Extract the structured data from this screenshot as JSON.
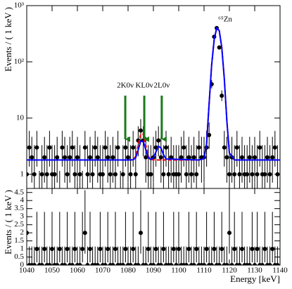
{
  "chart_data": [
    {
      "type": "scatter",
      "ylabel": "Events / ( 1 keV )",
      "log_y": true,
      "xlim": [
        1040,
        1140
      ],
      "xticks": [
        1040,
        1050,
        1060,
        1070,
        1080,
        1090,
        1100,
        1110,
        1120,
        1130,
        1140
      ],
      "ylim": [
        0.56,
        1000
      ],
      "yticks": [
        1,
        10,
        {
          "value": 100,
          "label": "10²"
        },
        {
          "value": 1000,
          "label": "10³"
        }
      ],
      "peak_label": "⁶⁵Zn",
      "annotations": [
        {
          "text": "2K0ν",
          "x": 1078.9,
          "color": "#1a7a1a"
        },
        {
          "text": "KL0ν",
          "x": 1086.4,
          "color": "#1a7a1a"
        },
        {
          "text": "2L0ν",
          "x": 1093.3,
          "color": "#1a7a1a"
        }
      ],
      "series": [
        {
          "type": "points",
          "color": "#000000",
          "x": [
            1040,
            1041,
            1042,
            1043,
            1044,
            1045,
            1046,
            1047,
            1048,
            1049,
            1050,
            1051,
            1052,
            1053,
            1054,
            1055,
            1056,
            1057,
            1058,
            1059,
            1060,
            1061,
            1062,
            1063,
            1064,
            1065,
            1066,
            1067,
            1068,
            1069,
            1070,
            1071,
            1072,
            1073,
            1074,
            1075,
            1076,
            1077,
            1078,
            1079,
            1080,
            1081,
            1082,
            1083,
            1084,
            1085,
            1086,
            1087,
            1088,
            1089,
            1090,
            1091,
            1092,
            1093,
            1094,
            1095,
            1096,
            1097,
            1098,
            1099,
            1100,
            1101,
            1102,
            1103,
            1104,
            1105,
            1106,
            1107,
            1108,
            1109,
            1110,
            1111,
            1112,
            1113,
            1114,
            1115,
            1116,
            1117,
            1118,
            1119,
            1120,
            1121,
            1122,
            1123,
            1124,
            1125,
            1126,
            1127,
            1128,
            1129,
            1130,
            1131,
            1132,
            1133,
            1134,
            1135,
            1136,
            1137,
            1138,
            1139
          ],
          "values": [
            1,
            3,
            2,
            1,
            3,
            0,
            1,
            2,
            1,
            3,
            1,
            1,
            2,
            0,
            3,
            2,
            1,
            2,
            3,
            1,
            2,
            1,
            0,
            3,
            1,
            2,
            1,
            3,
            2,
            1,
            1,
            3,
            2,
            1,
            2,
            1,
            3,
            0,
            1,
            3,
            2,
            1,
            3,
            1,
            4,
            6,
            4,
            2,
            1,
            1,
            2,
            3,
            4,
            2,
            1,
            3,
            1,
            2,
            1,
            1,
            1,
            2,
            3,
            1,
            2,
            1,
            2,
            1,
            3,
            2,
            2,
            3,
            5,
            40,
            280,
            400,
            180,
            25,
            3,
            2,
            1,
            2,
            1,
            3,
            1,
            2,
            1,
            1,
            2,
            1,
            2,
            1,
            3,
            1,
            1,
            2,
            1,
            2,
            3,
            1
          ],
          "yerr_low": [
            0.83,
            1.63,
            1.29,
            0.83,
            1.63,
            0,
            0.83,
            1.29,
            0.83,
            1.63,
            0.83,
            0.83,
            1.29,
            0,
            1.63,
            1.29,
            0.83,
            1.29,
            1.63,
            0.83,
            1.29,
            0.83,
            0,
            1.63,
            0.83,
            1.29,
            0.83,
            1.63,
            1.29,
            0.83,
            0.83,
            1.63,
            1.29,
            0.83,
            1.29,
            0.83,
            1.63,
            0,
            0.83,
            1.63,
            1.29,
            0.83,
            1.63,
            0.83,
            1.91,
            2.38,
            1.91,
            1.29,
            0.83,
            0.83,
            1.29,
            1.63,
            1.91,
            1.29,
            0.83,
            1.63,
            0.83,
            1.29,
            0.83,
            0.83,
            0.83,
            1.29,
            1.63,
            0.83,
            1.29,
            0.83,
            1.29,
            0.83,
            1.63,
            1.29,
            1.29,
            1.63,
            2.16,
            6.3,
            16.7,
            20,
            13.4,
            4.95,
            1.63,
            1.29,
            0.83,
            1.29,
            0.83,
            1.63,
            0.83,
            1.29,
            0.83,
            0.83,
            1.29,
            0.83,
            1.29,
            0.83,
            1.63,
            0.83,
            0.83,
            1.29,
            0.83,
            1.29,
            1.63,
            0.83
          ],
          "yerr_high": [
            2.3,
            2.92,
            2.64,
            2.3,
            2.92,
            1.15,
            2.3,
            2.64,
            2.3,
            2.92,
            2.3,
            2.3,
            2.64,
            1.15,
            2.92,
            2.64,
            2.3,
            2.64,
            2.92,
            2.3,
            2.64,
            2.3,
            1.15,
            2.92,
            2.3,
            2.64,
            2.3,
            2.92,
            2.64,
            2.3,
            2.3,
            2.92,
            2.64,
            2.3,
            2.64,
            2.3,
            2.92,
            1.15,
            2.3,
            2.92,
            2.64,
            2.3,
            2.92,
            2.3,
            3.16,
            3.58,
            3.16,
            2.64,
            2.3,
            2.3,
            2.64,
            2.92,
            3.16,
            2.64,
            2.3,
            2.92,
            2.3,
            2.64,
            2.3,
            2.3,
            2.3,
            2.64,
            2.92,
            2.3,
            2.64,
            2.3,
            2.64,
            2.3,
            2.92,
            2.64,
            2.64,
            2.92,
            3.38,
            7.4,
            17.7,
            21,
            14.4,
            6.1,
            2.92,
            2.64,
            2.3,
            2.64,
            2.3,
            2.92,
            2.3,
            2.64,
            2.3,
            2.3,
            2.64,
            2.3,
            2.64,
            2.3,
            2.92,
            2.3,
            2.3,
            2.64,
            2.3,
            2.64,
            2.92,
            2.3
          ]
        },
        {
          "type": "line",
          "color": "#ff0000",
          "dashed": true,
          "x": [
            1040,
            1080,
            1082,
            1083,
            1084,
            1085,
            1086,
            1087,
            1088,
            1089,
            1090,
            1091,
            1092,
            1093,
            1094,
            1095,
            1108,
            1110,
            1111,
            1112,
            1113,
            1114,
            1115,
            1116,
            1117,
            1118,
            1119,
            1120,
            1122,
            1140
          ],
          "values": [
            1.8,
            1.8,
            1.82,
            2.08,
            3.26,
            5.2,
            5.2,
            3.26,
            2.08,
            1.85,
            1.81,
            1.8,
            1.8,
            1.8,
            1.8,
            1.8,
            1.8,
            1.9,
            3.5,
            18,
            88,
            250,
            400,
            360,
            180,
            50,
            9,
            2.4,
            1.8,
            1.8
          ]
        },
        {
          "type": "line",
          "color": "#0000ff",
          "dashed": false,
          "x": [
            1040,
            1080,
            1082,
            1083,
            1084,
            1085,
            1086,
            1087,
            1088,
            1089,
            1090,
            1091,
            1092,
            1093,
            1094,
            1095,
            1108,
            1110,
            1111,
            1112,
            1113,
            1114,
            1115,
            1116,
            1117,
            1118,
            1119,
            1120,
            1122,
            1140
          ],
          "values": [
            1.8,
            1.8,
            1.81,
            1.97,
            2.71,
            3.87,
            3.87,
            2.71,
            1.97,
            1.83,
            1.96,
            2.5,
            3.15,
            2.94,
            2.23,
            1.87,
            1.8,
            1.9,
            3.5,
            18,
            88,
            250,
            400,
            360,
            180,
            50,
            9,
            2.4,
            1.8,
            1.8
          ]
        }
      ]
    },
    {
      "type": "scatter",
      "ylabel": "Events / ( 1 keV )",
      "xlabel": "Energy [keV]",
      "log_y": false,
      "xlim": [
        1040,
        1140
      ],
      "xticks": [
        1040,
        1050,
        1060,
        1070,
        1080,
        1090,
        1100,
        1110,
        1120,
        1130,
        1140
      ],
      "ylim": [
        0,
        4.75
      ],
      "yticks": [
        0,
        0.5,
        1,
        1.5,
        2,
        2.5,
        3,
        3.5,
        4,
        4.5
      ],
      "series": [
        {
          "type": "points",
          "color": "#000000",
          "x": [
            1040,
            1041,
            1042,
            1043,
            1044,
            1045,
            1046,
            1047,
            1048,
            1049,
            1050,
            1051,
            1052,
            1053,
            1054,
            1055,
            1056,
            1057,
            1058,
            1059,
            1060,
            1061,
            1062,
            1063,
            1064,
            1065,
            1066,
            1067,
            1068,
            1069,
            1070,
            1071,
            1072,
            1073,
            1074,
            1075,
            1076,
            1077,
            1078,
            1079,
            1080,
            1081,
            1082,
            1083,
            1084,
            1085,
            1086,
            1087,
            1088,
            1089,
            1090,
            1091,
            1092,
            1093,
            1094,
            1095,
            1096,
            1097,
            1098,
            1099,
            1100,
            1101,
            1102,
            1103,
            1104,
            1105,
            1106,
            1107,
            1108,
            1109,
            1110,
            1111,
            1112,
            1113,
            1114,
            1115,
            1116,
            1117,
            1118,
            1119,
            1120,
            1121,
            1122,
            1123,
            1124,
            1125,
            1126,
            1127,
            1128,
            1129,
            1130,
            1131,
            1132,
            1133,
            1134,
            1135,
            1136,
            1137,
            1138,
            1139
          ],
          "values": [
            2,
            0,
            0,
            0,
            1,
            0,
            0,
            1,
            0,
            0,
            1,
            0,
            0,
            1,
            0,
            0,
            1,
            0,
            0,
            1,
            0,
            0,
            1,
            2,
            0,
            1,
            0,
            0,
            0,
            1,
            0,
            0,
            1,
            0,
            0,
            1,
            0,
            0,
            0,
            1,
            0,
            0,
            1,
            0,
            0,
            2,
            0,
            0,
            1,
            0,
            0,
            1,
            0,
            0,
            1,
            0,
            0,
            0,
            1,
            0,
            1,
            0,
            0,
            0,
            1,
            0,
            0,
            1,
            0,
            0,
            0,
            1,
            0,
            0,
            1,
            0,
            0,
            1,
            0,
            0,
            2,
            0,
            1,
            0,
            0,
            1,
            0,
            0,
            0,
            1,
            0,
            1,
            0,
            0,
            1,
            0,
            0,
            1,
            0,
            0
          ],
          "yerr_low": [
            1.29,
            0,
            0,
            0,
            0.83,
            0,
            0,
            0.83,
            0,
            0,
            0.83,
            0,
            0,
            0.83,
            0,
            0,
            0.83,
            0,
            0,
            0.83,
            0,
            0,
            0.83,
            1.29,
            0,
            0.83,
            0,
            0,
            0,
            0.83,
            0,
            0,
            0.83,
            0,
            0,
            0.83,
            0,
            0,
            0,
            0.83,
            0,
            0,
            0.83,
            0,
            0,
            1.29,
            0,
            0,
            0.83,
            0,
            0,
            0.83,
            0,
            0,
            0.83,
            0,
            0,
            0,
            0.83,
            0,
            0.83,
            0,
            0,
            0,
            0.83,
            0,
            0,
            0.83,
            0,
            0,
            0,
            0.83,
            0,
            0,
            0.83,
            0,
            0,
            0.83,
            0,
            0,
            1.29,
            0,
            0.83,
            0,
            0,
            0.83,
            0,
            0,
            0,
            0.83,
            0,
            0.83,
            0,
            0,
            0.83,
            0,
            0,
            0.83,
            0,
            0
          ],
          "yerr_high": [
            2.64,
            1.15,
            1.15,
            1.15,
            2.3,
            1.15,
            1.15,
            2.3,
            1.15,
            1.15,
            2.3,
            1.15,
            1.15,
            2.3,
            1.15,
            1.15,
            2.3,
            1.15,
            1.15,
            2.3,
            1.15,
            1.15,
            2.3,
            2.64,
            1.15,
            2.3,
            1.15,
            1.15,
            1.15,
            2.3,
            1.15,
            1.15,
            2.3,
            1.15,
            1.15,
            2.3,
            1.15,
            1.15,
            1.15,
            2.3,
            1.15,
            1.15,
            2.3,
            1.15,
            1.15,
            2.64,
            1.15,
            1.15,
            2.3,
            1.15,
            1.15,
            2.3,
            1.15,
            1.15,
            2.3,
            1.15,
            1.15,
            1.15,
            2.3,
            1.15,
            2.3,
            1.15,
            1.15,
            1.15,
            2.3,
            1.15,
            1.15,
            2.3,
            1.15,
            1.15,
            1.15,
            2.3,
            1.15,
            1.15,
            2.3,
            1.15,
            1.15,
            2.3,
            1.15,
            1.15,
            2.64,
            1.15,
            2.3,
            1.15,
            1.15,
            2.3,
            1.15,
            1.15,
            1.15,
            2.3,
            1.15,
            2.3,
            1.15,
            1.15,
            2.3,
            1.15,
            1.15,
            2.3,
            1.15,
            1.15
          ]
        }
      ]
    }
  ]
}
